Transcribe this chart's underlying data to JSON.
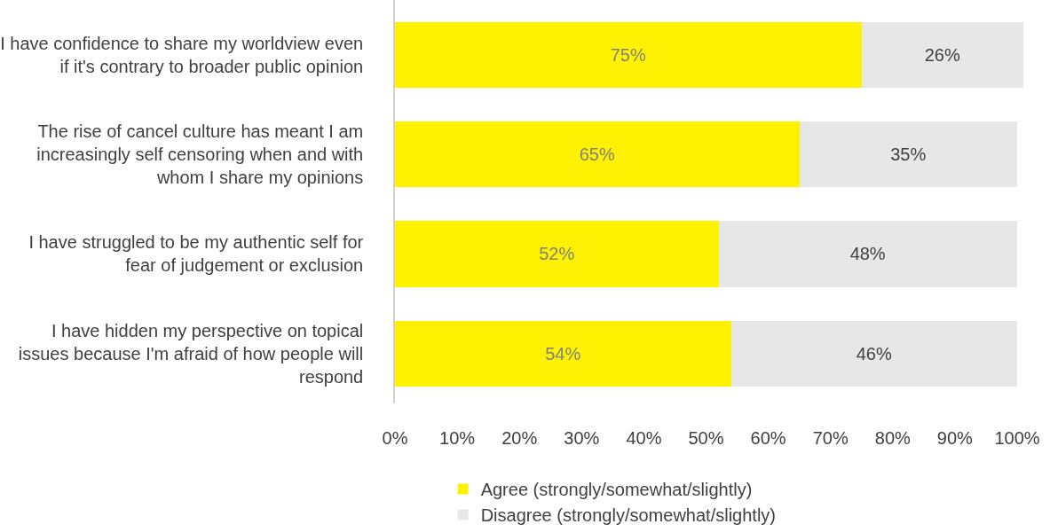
{
  "chart_data": {
    "type": "bar",
    "orientation": "horizontal",
    "stacked": true,
    "categories": [
      "I have confidence to share my worldview even if it's contrary to broader public opinion",
      "The rise of cancel culture has meant I am increasingly self censoring when and with whom I share my opinions",
      "I have struggled to be my authentic self for fear of judgement or exclusion",
      "I have hidden my perspective on topical issues because I'm afraid of how people will respond"
    ],
    "series": [
      {
        "name": "Agree (strongly/somewhat/slightly)",
        "color": "#fff200",
        "values": [
          75,
          65,
          52,
          54
        ],
        "value_labels": [
          "75%",
          "65%",
          "52%",
          "54%"
        ]
      },
      {
        "name": "Disagree (strongly/somewhat/slightly)",
        "color": "#e7e7e7",
        "values": [
          26,
          35,
          48,
          46
        ],
        "value_labels": [
          "26%",
          "35%",
          "48%",
          "46%"
        ]
      }
    ],
    "xlim": [
      0,
      101
    ],
    "xticks": [
      {
        "value": 0,
        "label": "0%"
      },
      {
        "value": 10,
        "label": "10%"
      },
      {
        "value": 20,
        "label": "20%"
      },
      {
        "value": 30,
        "label": "30%"
      },
      {
        "value": 40,
        "label": "40%"
      },
      {
        "value": 50,
        "label": "50%"
      },
      {
        "value": 60,
        "label": "60%"
      },
      {
        "value": 70,
        "label": "70%"
      },
      {
        "value": 80,
        "label": "80%"
      },
      {
        "value": 90,
        "label": "90%"
      },
      {
        "value": 100,
        "label": "100%"
      }
    ],
    "legend": "bottom"
  }
}
